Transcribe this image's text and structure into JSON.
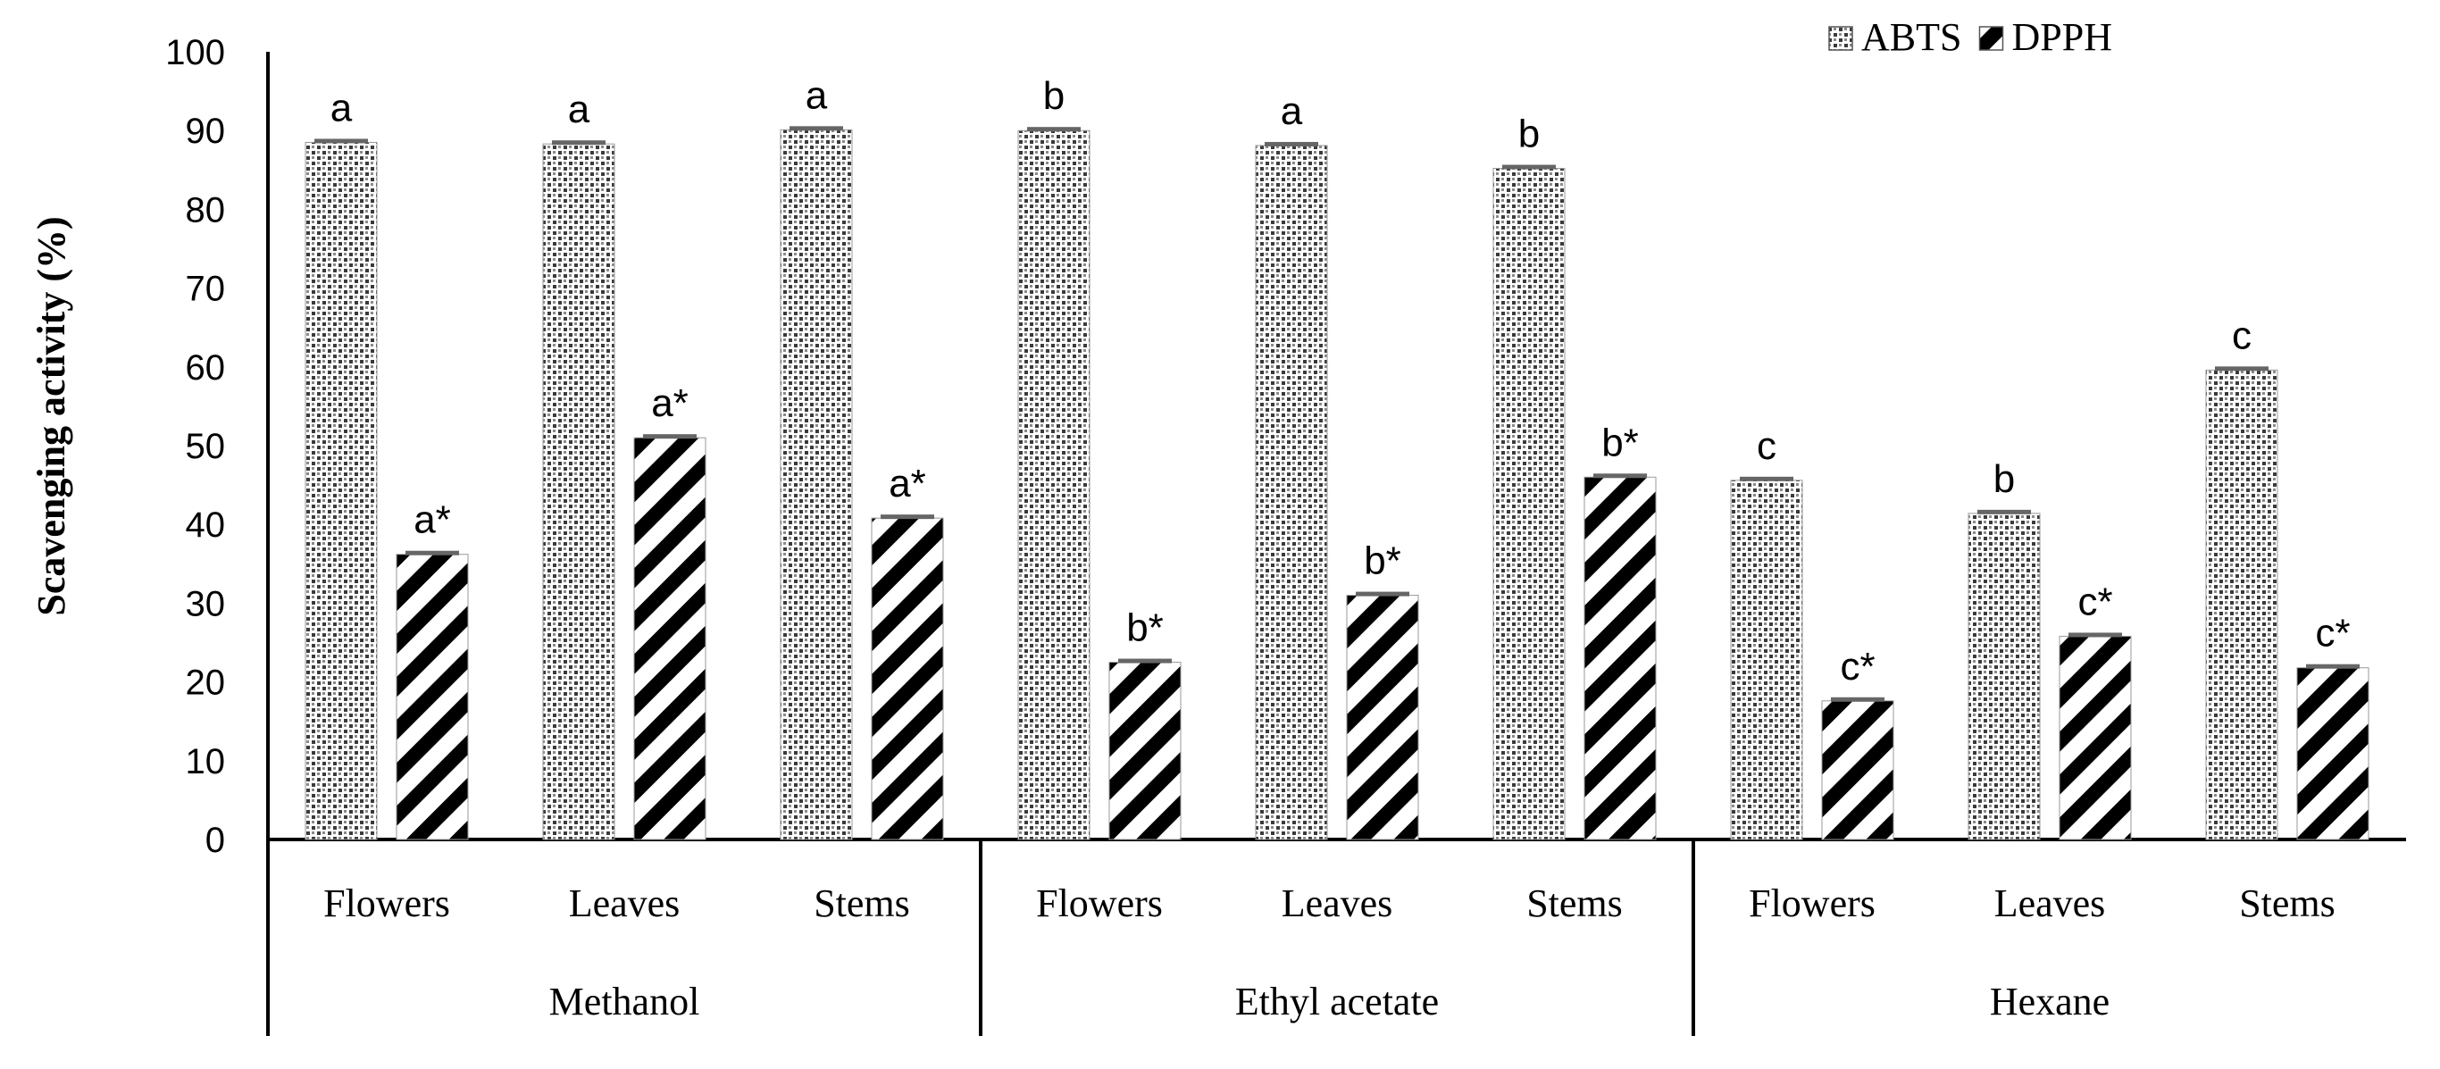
{
  "chart_data": {
    "type": "bar",
    "title": "",
    "xlabel": "",
    "ylabel": "Scavenging activity  (%)",
    "ylim": [
      0,
      100
    ],
    "yticks": [
      0,
      10,
      20,
      30,
      40,
      50,
      60,
      70,
      80,
      90,
      100
    ],
    "legend_position": "top-right",
    "groups": [
      {
        "label": "Methanol",
        "categories": [
          "Flowers",
          "Leaves",
          "Stems"
        ]
      },
      {
        "label": "Ethyl acetate",
        "categories": [
          "Flowers",
          "Leaves",
          "Stems"
        ]
      },
      {
        "label": "Hexane",
        "categories": [
          "Flowers",
          "Leaves",
          "Stems"
        ]
      }
    ],
    "series": [
      {
        "name": "ABTS",
        "pattern": "crosshatch",
        "values": [
          88.5,
          88.3,
          90.1,
          90.0,
          88.1,
          85.2,
          45.6,
          41.4,
          59.6
        ],
        "letters": [
          "a",
          "a",
          "a",
          "b",
          "a",
          "b",
          "c",
          "b",
          "c"
        ]
      },
      {
        "name": "DPPH",
        "pattern": "diagonal-stripes",
        "values": [
          36.2,
          51.0,
          40.8,
          22.5,
          31.0,
          46.0,
          17.6,
          25.8,
          21.8
        ],
        "letters": [
          "a*",
          "a*",
          "a*",
          "b*",
          "b*",
          "b*",
          "c*",
          "c*",
          "c*"
        ]
      }
    ]
  }
}
